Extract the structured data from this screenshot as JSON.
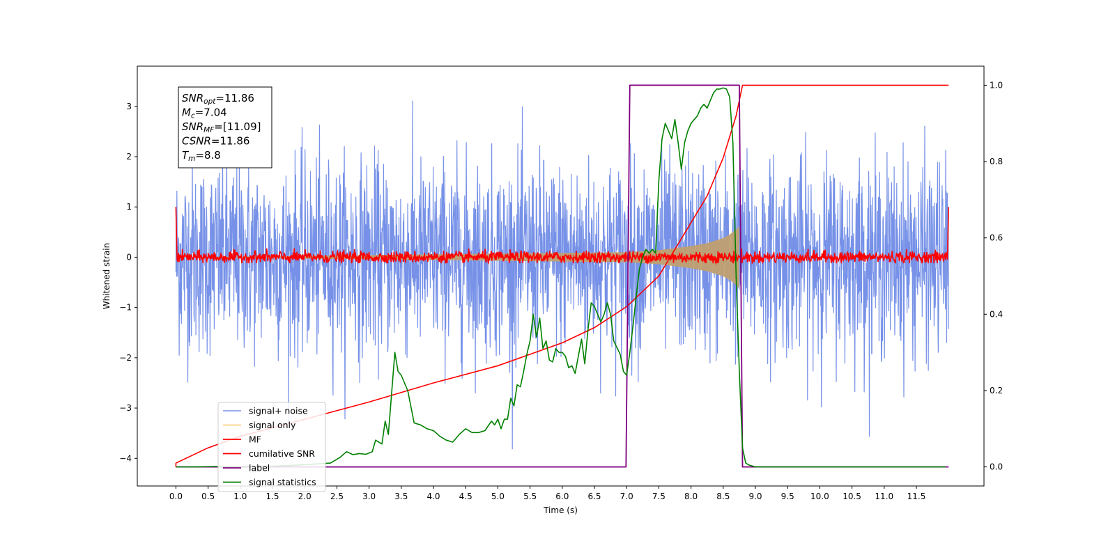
{
  "chart_data": {
    "type": "line",
    "xlabel": "Time (s)",
    "ylabel": "Whitened strain",
    "xlim": [
      -0.6,
      12.55
    ],
    "ylim": [
      -4.55,
      3.8
    ],
    "y2lim": [
      -0.05,
      1.05
    ],
    "x_ticks": [
      0.0,
      0.5,
      1.0,
      1.5,
      2.0,
      2.5,
      3.0,
      3.5,
      4.0,
      4.5,
      5.0,
      5.5,
      6.0,
      6.5,
      7.0,
      7.5,
      8.0,
      8.5,
      9.0,
      9.5,
      10.0,
      10.5,
      11.0,
      11.5
    ],
    "x_tick_labels": [
      "0.0",
      "0.5",
      "1.0",
      "1.5",
      "2.0",
      "2.5",
      "3.0",
      "3.5",
      "4.0",
      "4.5",
      "5.0",
      "5.5",
      "6.0",
      "6.5",
      "7.0",
      "7.5",
      "8.0",
      "8.5",
      "9.0",
      "9.5",
      "10.0",
      "10.5",
      "11.0",
      "11.5"
    ],
    "y_ticks": [
      3,
      2,
      1,
      0,
      -1,
      -2,
      -3,
      -4
    ],
    "y_tick_labels": [
      "3",
      "2",
      "1",
      "0",
      "−1",
      "−2",
      "−3",
      "−4"
    ],
    "y2_ticks": [
      1.0,
      0.8,
      0.6,
      0.4,
      0.2,
      0.0
    ],
    "y2_tick_labels": [
      "1.0",
      "0.8",
      "0.6",
      "0.4",
      "0.2",
      "0.0"
    ],
    "grid": false,
    "legend_position": "bottom-left",
    "annotation": [
      {
        "name": "SNR",
        "sub": "opt",
        "value": "=11.86"
      },
      {
        "name": "M",
        "sub": "c",
        "value": "=7.04"
      },
      {
        "name": "SNR",
        "sub": "MF",
        "value": "=[11.09]"
      },
      {
        "name": "CSNR",
        "sub": "",
        "value": "=11.86"
      },
      {
        "name": "T",
        "sub": "m",
        "value": "=8.8"
      }
    ],
    "series": [
      {
        "name": "signal+ noise",
        "color": "#6f8be6",
        "axis": "left",
        "description_values": {
          "x_range": [
            0.0,
            12.0
          ],
          "amplitude_range": [
            -4.1,
            3.4
          ]
        }
      },
      {
        "name": "signal only",
        "color": "#ffd280",
        "axis": "left",
        "x": [
          0.0,
          7.0,
          7.5,
          8.0,
          8.25,
          8.5,
          8.6,
          8.7,
          8.75
        ],
        "envelope": [
          0.0,
          0.1,
          0.14,
          0.22,
          0.28,
          0.38,
          0.45,
          0.55,
          0.62
        ]
      },
      {
        "name": "MF",
        "color": "#ff0000",
        "axis": "left",
        "x_range": [
          0.0,
          12.0
        ],
        "amplitude": 0.15,
        "edge_value": 1.0
      },
      {
        "name": "cumilative SNR",
        "color": "#ff0000",
        "axis": "right",
        "x": [
          0.0,
          0.5,
          1.0,
          2.0,
          3.0,
          4.0,
          5.0,
          6.0,
          6.5,
          7.0,
          7.5,
          8.0,
          8.25,
          8.5,
          8.7,
          8.8,
          12.0
        ],
        "y": [
          0.01,
          0.05,
          0.08,
          0.125,
          0.17,
          0.22,
          0.265,
          0.325,
          0.365,
          0.42,
          0.5,
          0.64,
          0.71,
          0.81,
          0.92,
          1.0,
          1.0
        ]
      },
      {
        "name": "label",
        "color": "#7f007f",
        "axis": "right",
        "x": [
          0.0,
          6.99,
          7.05,
          8.75,
          8.8,
          12.0
        ],
        "y": [
          0.0,
          0.0,
          1.0,
          1.0,
          0.0,
          0.0
        ]
      },
      {
        "name": "signal statistics",
        "color": "#008000",
        "axis": "right",
        "x": [
          0.0,
          0.3,
          0.6,
          0.9,
          1.2,
          1.5,
          1.8,
          2.1,
          2.4,
          2.55,
          2.65,
          2.75,
          2.85,
          2.95,
          3.05,
          3.1,
          3.2,
          3.25,
          3.3,
          3.4,
          3.45,
          3.5,
          3.6,
          3.7,
          3.8,
          3.9,
          4.0,
          4.1,
          4.2,
          4.3,
          4.4,
          4.5,
          4.6,
          4.7,
          4.8,
          4.9,
          4.95,
          5.0,
          5.05,
          5.1,
          5.15,
          5.2,
          5.25,
          5.3,
          5.35,
          5.4,
          5.45,
          5.5,
          5.55,
          5.6,
          5.65,
          5.7,
          5.75,
          5.8,
          5.85,
          5.9,
          5.95,
          6.0,
          6.05,
          6.1,
          6.15,
          6.2,
          6.25,
          6.3,
          6.35,
          6.4,
          6.45,
          6.5,
          6.55,
          6.6,
          6.65,
          6.7,
          6.75,
          6.8,
          6.9,
          6.95,
          7.0,
          7.05,
          7.1,
          7.15,
          7.2,
          7.25,
          7.3,
          7.35,
          7.4,
          7.45,
          7.5,
          7.55,
          7.6,
          7.65,
          7.7,
          7.75,
          7.8,
          7.85,
          7.9,
          7.95,
          8.0,
          8.05,
          8.1,
          8.15,
          8.2,
          8.25,
          8.3,
          8.35,
          8.4,
          8.45,
          8.5,
          8.55,
          8.6,
          8.65,
          8.7,
          8.75,
          8.8,
          8.85,
          8.9,
          9.0,
          10.0,
          11.0,
          11.95
        ],
        "y": [
          0.0,
          0.0,
          0.001,
          0.001,
          0.002,
          0.002,
          0.004,
          0.007,
          0.01,
          0.025,
          0.04,
          0.032,
          0.035,
          0.033,
          0.04,
          0.07,
          0.06,
          0.12,
          0.085,
          0.3,
          0.25,
          0.24,
          0.2,
          0.115,
          0.11,
          0.1,
          0.095,
          0.08,
          0.07,
          0.065,
          0.085,
          0.1,
          0.09,
          0.09,
          0.095,
          0.12,
          0.11,
          0.125,
          0.1,
          0.125,
          0.125,
          0.18,
          0.16,
          0.215,
          0.21,
          0.25,
          0.295,
          0.33,
          0.4,
          0.34,
          0.39,
          0.31,
          0.33,
          0.28,
          0.275,
          0.31,
          0.3,
          0.3,
          0.29,
          0.26,
          0.265,
          0.245,
          0.29,
          0.335,
          0.27,
          0.36,
          0.43,
          0.42,
          0.4,
          0.38,
          0.4,
          0.43,
          0.4,
          0.33,
          0.295,
          0.25,
          0.24,
          0.3,
          0.37,
          0.45,
          0.52,
          0.55,
          0.57,
          0.56,
          0.57,
          0.56,
          0.75,
          0.86,
          0.9,
          0.88,
          0.86,
          0.91,
          0.85,
          0.78,
          0.85,
          0.88,
          0.9,
          0.91,
          0.92,
          0.94,
          0.95,
          0.94,
          0.96,
          0.98,
          0.99,
          0.99,
          0.993,
          0.99,
          0.97,
          0.85,
          0.5,
          0.25,
          0.05,
          0.01,
          0.005,
          0.0,
          0.0,
          0.0,
          0.0
        ]
      }
    ]
  }
}
